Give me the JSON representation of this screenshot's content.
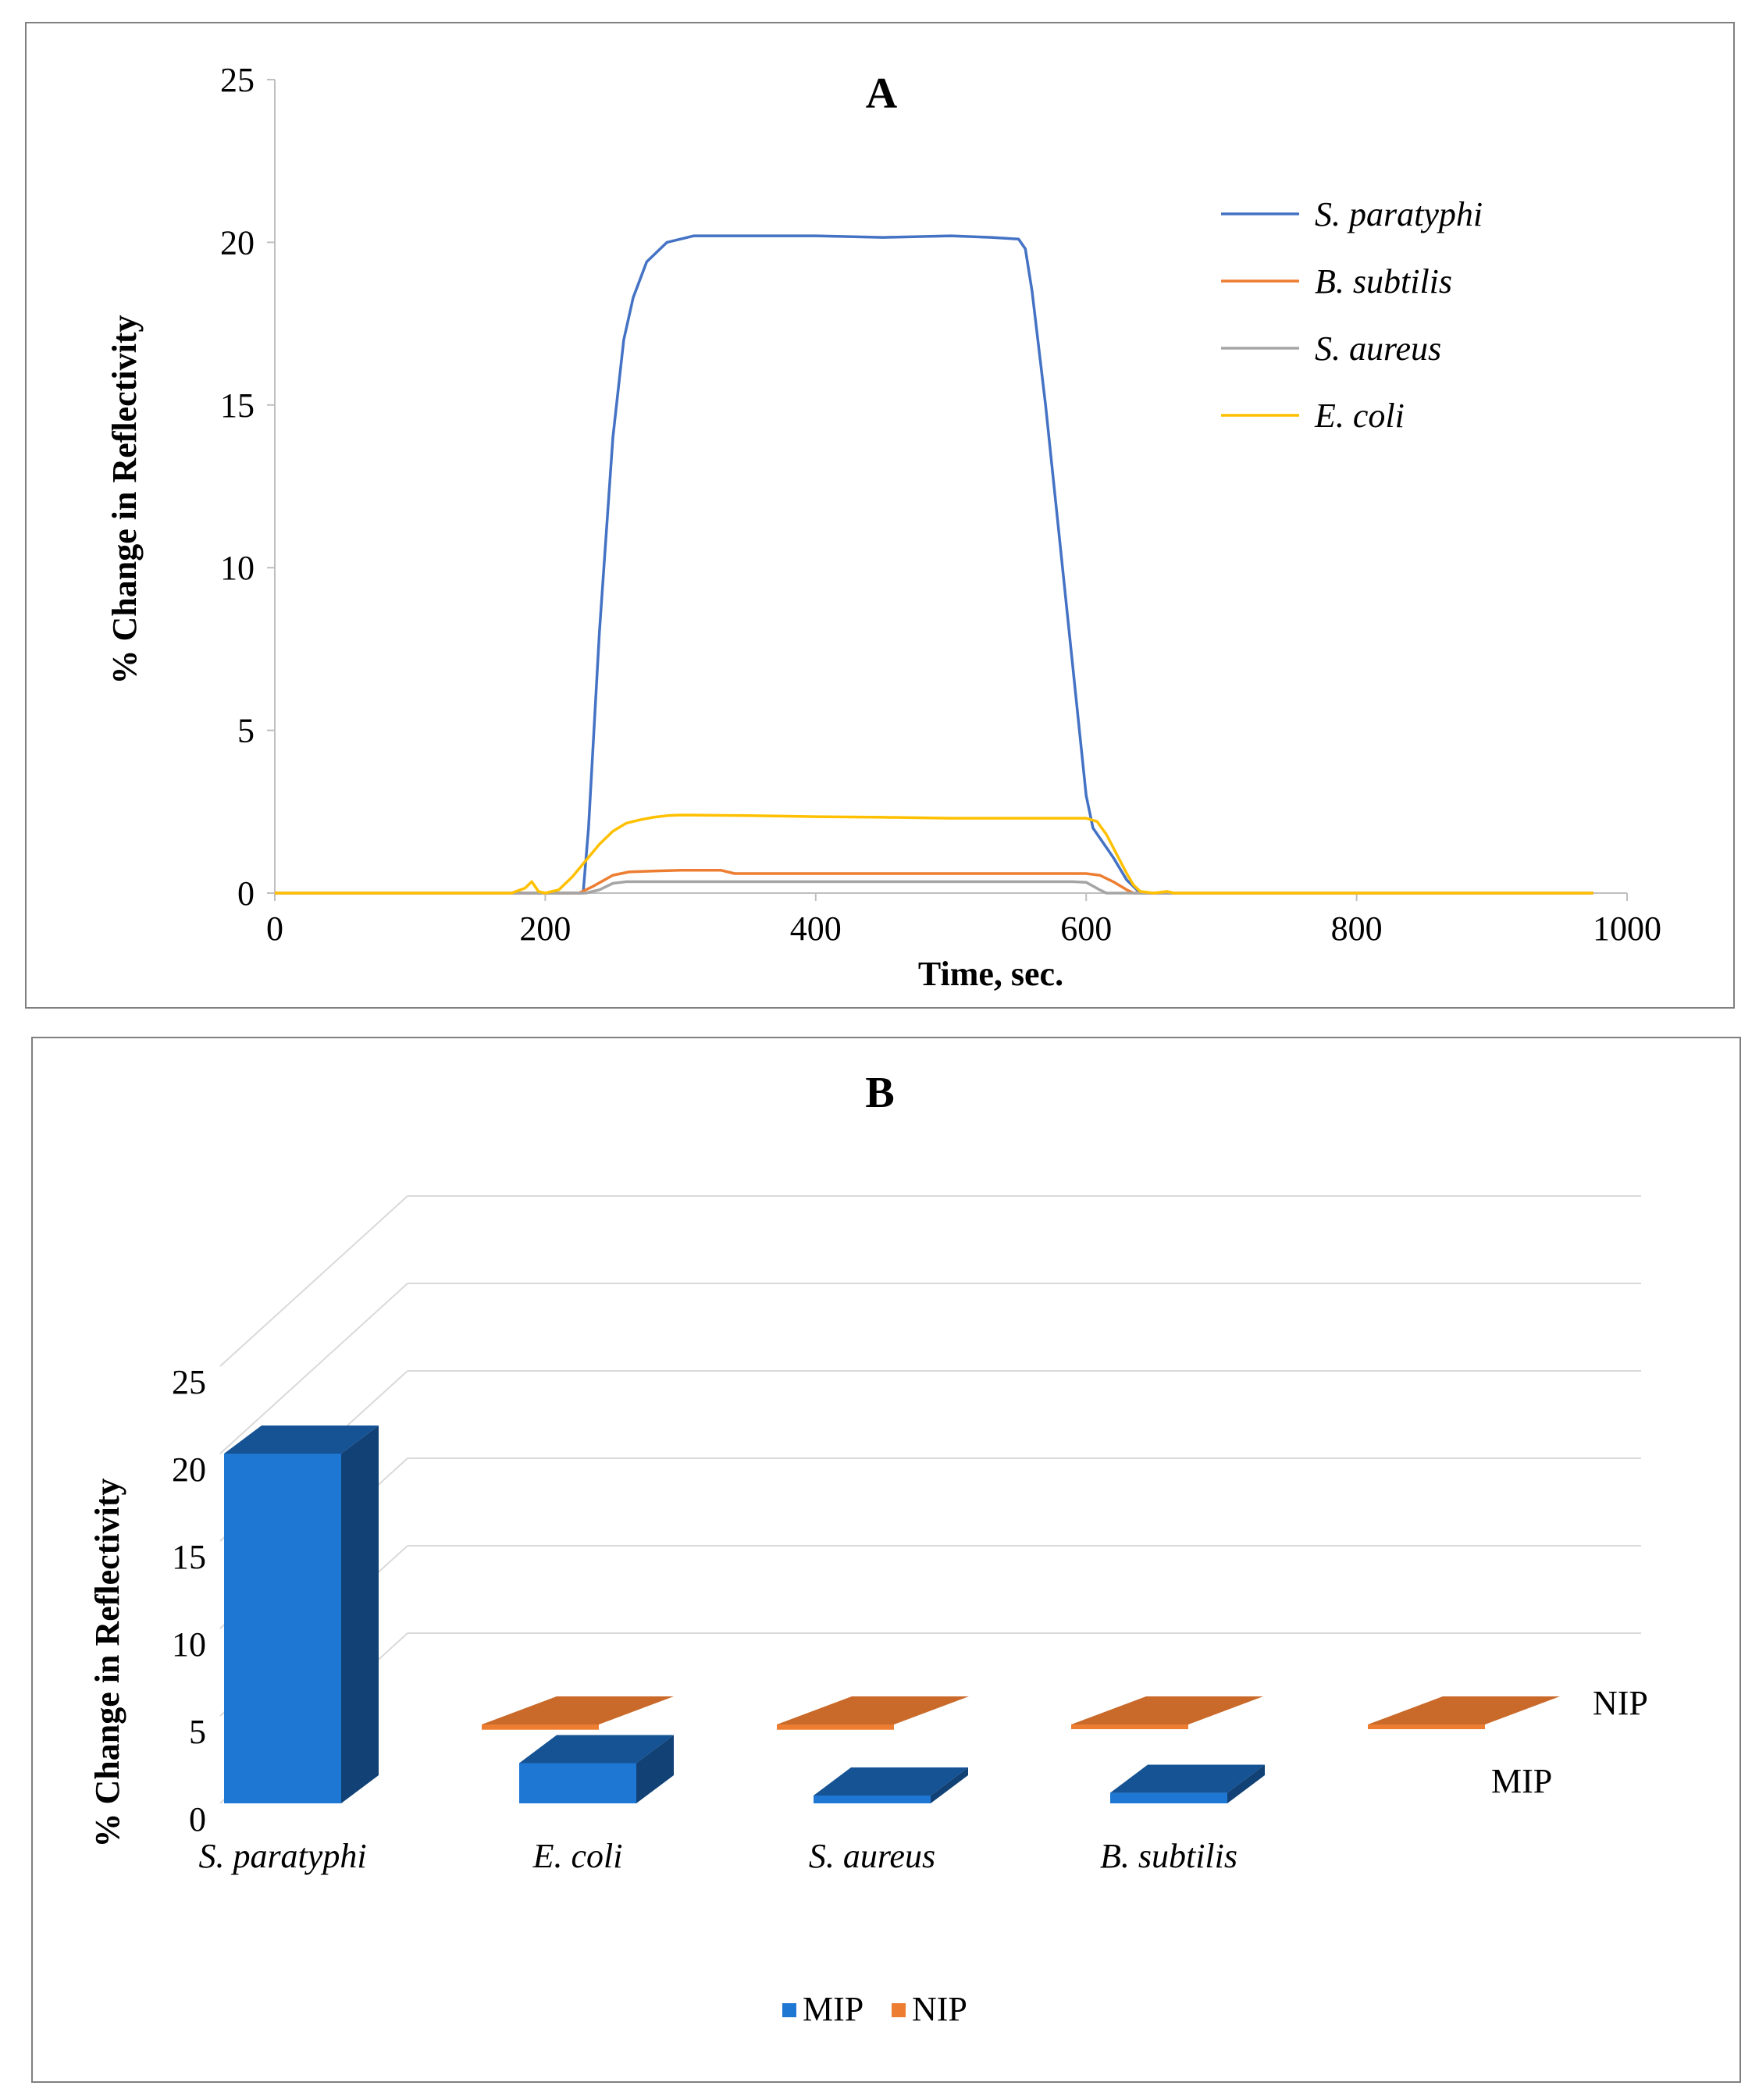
{
  "chart_data": [
    {
      "type": "line",
      "title": "A",
      "xlabel": "Time, sec.",
      "ylabel": "% Change in Reflectivity",
      "xlim": [
        0,
        1000
      ],
      "ylim": [
        0,
        25
      ],
      "xticks": [
        "0",
        "200",
        "400",
        "600",
        "800",
        "1000"
      ],
      "yticks": [
        "0",
        "5",
        "10",
        "15",
        "20",
        "25"
      ],
      "legend_position": "top-right",
      "series": [
        {
          "name": "S. paratyphi",
          "color": "#4472c4",
          "x": [
            0,
            100,
            180,
            200,
            220,
            228,
            232,
            240,
            250,
            258,
            265,
            275,
            290,
            310,
            350,
            400,
            450,
            500,
            530,
            550,
            555,
            560,
            570,
            580,
            590,
            600,
            605,
            610,
            620,
            630,
            640,
            650,
            700,
            800,
            900,
            975
          ],
          "y": [
            0,
            0,
            0,
            0,
            0,
            0,
            2,
            8,
            14,
            17,
            18.3,
            19.4,
            20.0,
            20.2,
            20.2,
            20.2,
            20.15,
            20.2,
            20.15,
            20.1,
            19.8,
            18.5,
            15,
            11,
            7,
            3,
            2.0,
            1.7,
            1.1,
            0.4,
            0,
            0,
            0,
            0,
            0,
            0
          ]
        },
        {
          "name": "B. subtilis",
          "color": "#ed7d31",
          "x": [
            0,
            100,
            200,
            225,
            235,
            250,
            262,
            280,
            300,
            330,
            340,
            400,
            500,
            600,
            610,
            620,
            630,
            635,
            650,
            700,
            800,
            975
          ],
          "y": [
            0,
            0,
            0,
            0,
            0.2,
            0.55,
            0.65,
            0.68,
            0.7,
            0.7,
            0.6,
            0.6,
            0.6,
            0.6,
            0.55,
            0.35,
            0.1,
            0,
            0,
            0,
            0,
            0
          ]
        },
        {
          "name": "S. aureus",
          "color": "#a5a5a5",
          "x": [
            0,
            100,
            200,
            230,
            240,
            250,
            260,
            300,
            400,
            500,
            590,
            600,
            610,
            615,
            650,
            700,
            800,
            975
          ],
          "y": [
            0,
            0,
            0,
            0,
            0.1,
            0.3,
            0.35,
            0.35,
            0.35,
            0.35,
            0.35,
            0.33,
            0.1,
            0,
            0,
            0,
            0,
            0
          ]
        },
        {
          "name": "E. coli",
          "color": "#ffc000",
          "x": [
            0,
            100,
            175,
            185,
            190,
            195,
            200,
            210,
            215,
            220,
            230,
            240,
            250,
            260,
            270,
            280,
            290,
            300,
            350,
            400,
            450,
            500,
            550,
            600,
            608,
            615,
            620,
            625,
            630,
            635,
            640,
            650,
            660,
            665,
            670,
            700,
            800,
            975
          ],
          "y": [
            0,
            0,
            0,
            0.15,
            0.35,
            0.05,
            0,
            0.1,
            0.3,
            0.5,
            1.0,
            1.5,
            1.9,
            2.15,
            2.25,
            2.33,
            2.38,
            2.4,
            2.38,
            2.35,
            2.33,
            2.3,
            2.3,
            2.3,
            2.2,
            1.8,
            1.4,
            1.0,
            0.6,
            0.25,
            0.05,
            0,
            0.05,
            0,
            0,
            0,
            0,
            0
          ]
        }
      ]
    },
    {
      "type": "bar",
      "title": "B",
      "ylabel": "%  Change in Reflectivity",
      "ylim": [
        0,
        25
      ],
      "yticks": [
        "0",
        "5",
        "10",
        "15",
        "20",
        "25"
      ],
      "categories": [
        "S. paratyphi",
        "E. coli",
        "S. aureus",
        "B. subtilis"
      ],
      "series": [
        {
          "name": "MIP",
          "color": "#1f77d4",
          "values": [
            20,
            2.3,
            0.3,
            0.6
          ]
        },
        {
          "name": "NIP",
          "color": "#ed7d31",
          "values": [
            0.3,
            0.3,
            0.2,
            0.2
          ]
        }
      ],
      "legend_position": "bottom",
      "legend": [
        "MIP",
        "NIP"
      ]
    }
  ]
}
